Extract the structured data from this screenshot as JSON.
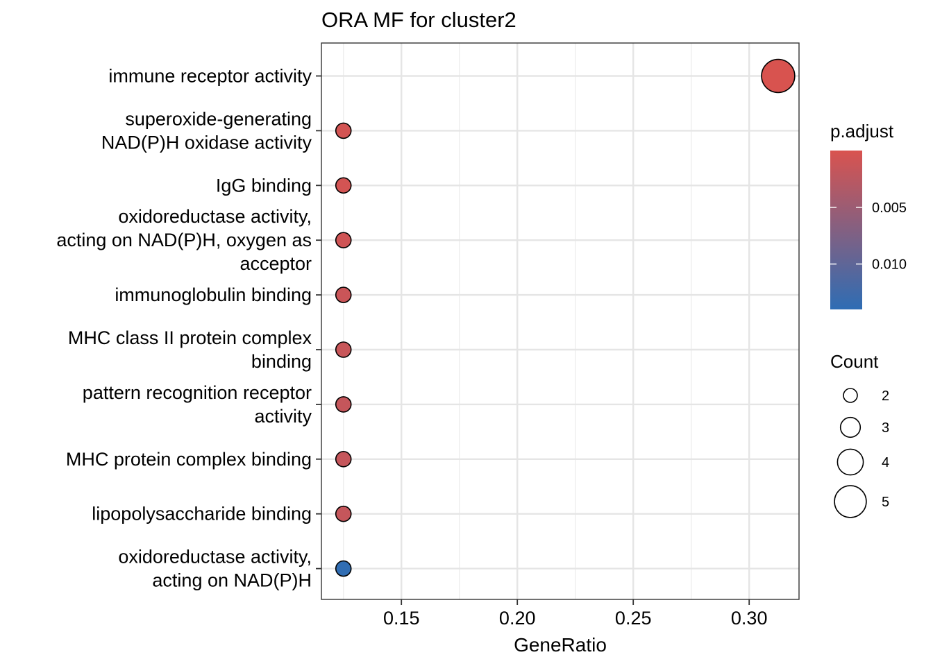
{
  "chart_data": {
    "type": "scatter",
    "title": "ORA MF for cluster2",
    "xlabel": "GeneRatio",
    "ylabel": "",
    "xlim": [
      0.1155,
      0.3215
    ],
    "xticks": [
      0.15,
      0.2,
      0.25,
      0.3
    ],
    "xtick_labels": [
      "0.15",
      "0.20",
      "0.25",
      "0.30"
    ],
    "grid": true,
    "points": [
      {
        "label": [
          "immune receptor activity"
        ],
        "x": 0.3125,
        "count": 5,
        "p_adjust": 5e-05
      },
      {
        "label": [
          "superoxide-generating",
          "NAD(P)H oxidase activity"
        ],
        "x": 0.125,
        "count": 2,
        "p_adjust": 0.0005
      },
      {
        "label": [
          "IgG binding"
        ],
        "x": 0.125,
        "count": 2,
        "p_adjust": 0.0005
      },
      {
        "label": [
          "oxidoreductase activity,",
          "acting on NAD(P)H, oxygen as",
          "acceptor"
        ],
        "x": 0.125,
        "count": 2,
        "p_adjust": 0.0008
      },
      {
        "label": [
          "immunoglobulin binding"
        ],
        "x": 0.125,
        "count": 2,
        "p_adjust": 0.0012
      },
      {
        "label": [
          "MHC class II protein complex",
          "binding"
        ],
        "x": 0.125,
        "count": 2,
        "p_adjust": 0.0014
      },
      {
        "label": [
          "pattern recognition receptor",
          "activity"
        ],
        "x": 0.125,
        "count": 2,
        "p_adjust": 0.0016
      },
      {
        "label": [
          "MHC protein complex binding"
        ],
        "x": 0.125,
        "count": 2,
        "p_adjust": 0.0016
      },
      {
        "label": [
          "lipopolysaccharide binding"
        ],
        "x": 0.125,
        "count": 2,
        "p_adjust": 0.0016
      },
      {
        "label": [
          "oxidoreductase activity,",
          "acting on NAD(P)H"
        ],
        "x": 0.125,
        "count": 2,
        "p_adjust": 0.0138
      }
    ],
    "color_legend": {
      "title": "p.adjust",
      "range": [
        0.0,
        0.014
      ],
      "low_color": "#d9534f",
      "high_color": "#2e6db4",
      "ticks": [
        0.005,
        0.01
      ],
      "tick_labels": [
        "0.005",
        "0.010"
      ]
    },
    "size_legend": {
      "title": "Count",
      "values": [
        2,
        3,
        4,
        5
      ],
      "labels": [
        "2",
        "3",
        "4",
        "5"
      ]
    },
    "legend_position": "right"
  }
}
